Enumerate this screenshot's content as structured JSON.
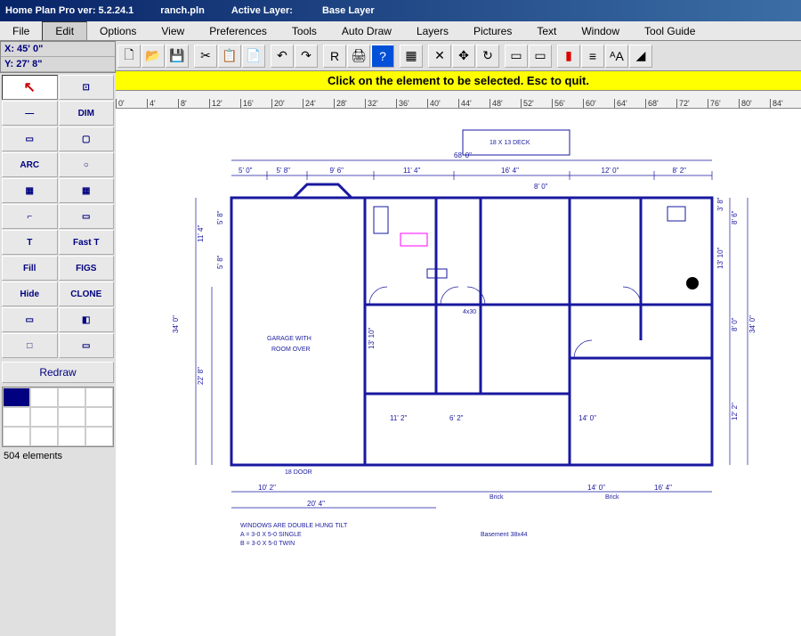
{
  "titlebar": {
    "app": "Home Plan Pro ver: 5.2.24.1",
    "file": "ranch.pln",
    "layer_label": "Active Layer:",
    "layer": "Base Layer"
  },
  "menu": [
    "File",
    "Edit",
    "Options",
    "View",
    "Preferences",
    "Tools",
    "Auto Draw",
    "Layers",
    "Pictures",
    "Text",
    "Window",
    "Tool Guide"
  ],
  "coords": {
    "x": "X: 45' 0\"",
    "y": "Y: 27' 8\""
  },
  "tools": [
    {
      "icon": "↖",
      "name": "select-arrow",
      "sel": true
    },
    {
      "icon": "⊡",
      "name": "select-rect"
    },
    {
      "icon": "—",
      "name": "line"
    },
    {
      "icon": "DIM",
      "name": "dimension"
    },
    {
      "icon": "▭",
      "name": "rect"
    },
    {
      "icon": "▢",
      "name": "rounded-rect"
    },
    {
      "icon": "ARC",
      "name": "arc"
    },
    {
      "icon": "○",
      "name": "circle"
    },
    {
      "icon": "▦",
      "name": "grid1"
    },
    {
      "icon": "▦",
      "name": "grid2"
    },
    {
      "icon": "⌐",
      "name": "polyline"
    },
    {
      "icon": "▭",
      "name": "shape"
    },
    {
      "icon": "T",
      "name": "text"
    },
    {
      "icon": "Fast T",
      "name": "fast-text"
    },
    {
      "icon": "Fill",
      "name": "fill"
    },
    {
      "icon": "FIGS",
      "name": "figures"
    },
    {
      "icon": "Hide",
      "name": "hide"
    },
    {
      "icon": "CLONE",
      "name": "clone"
    },
    {
      "icon": "▭",
      "name": "entity1"
    },
    {
      "icon": "◧",
      "name": "entity2"
    },
    {
      "icon": "□",
      "name": "entity3"
    },
    {
      "icon": "▭",
      "name": "entity4"
    }
  ],
  "redraw": "Redraw",
  "colors": [
    "#000080",
    "#fff",
    "#fff",
    "#fff",
    "#fff",
    "#fff",
    "#fff",
    "#fff",
    "#fff",
    "#fff",
    "#fff",
    "#fff"
  ],
  "status": "504 elements",
  "toolbar_icons": [
    {
      "g": "🗋",
      "n": "new"
    },
    {
      "g": "📂",
      "n": "open"
    },
    {
      "g": "💾",
      "n": "save"
    },
    {
      "sep": 1
    },
    {
      "g": "✂",
      "n": "cut"
    },
    {
      "g": "📋",
      "n": "copy"
    },
    {
      "g": "📄",
      "n": "paste"
    },
    {
      "sep": 1
    },
    {
      "g": "↶",
      "n": "undo"
    },
    {
      "g": "↷",
      "n": "redo"
    },
    {
      "sep": 1
    },
    {
      "g": "R",
      "n": "redraw-tb"
    },
    {
      "g": "🖨",
      "n": "print"
    },
    {
      "g": "?",
      "n": "help",
      "bg": "#0050d8",
      "fg": "#fff"
    },
    {
      "sep": 1
    },
    {
      "g": "▦",
      "n": "grid-tb"
    },
    {
      "sep": 1
    },
    {
      "g": "✕",
      "n": "delete"
    },
    {
      "g": "✥",
      "n": "move"
    },
    {
      "g": "↻",
      "n": "rotate"
    },
    {
      "sep": 1
    },
    {
      "g": "▭",
      "n": "shape-tb"
    },
    {
      "g": "▭",
      "n": "shape2-tb"
    },
    {
      "sep": 1
    },
    {
      "g": "▮",
      "n": "colors-tb",
      "fg": "#d00"
    },
    {
      "g": "≡",
      "n": "lines-tb"
    },
    {
      "g": "ᴬA",
      "n": "fonts-tb"
    },
    {
      "g": "◢",
      "n": "hatch-tb"
    }
  ],
  "hint": "Click on the element to be selected.  Esc to quit.",
  "ruler_ticks": [
    "0'",
    "4'",
    "8'",
    "12'",
    "16'",
    "20'",
    "24'",
    "28'",
    "32'",
    "36'",
    "40'",
    "44'",
    "48'",
    "52'",
    "56'",
    "60'",
    "64'",
    "68'",
    "72'",
    "76'",
    "80'",
    "84'"
  ],
  "floorplan": {
    "overall_width": "68' 0\"",
    "deck_label": "18 X 13 DECK",
    "top_dims": [
      "5' 0\"",
      "5' 8\"",
      "9' 6\"",
      "11' 4\"",
      "16' 4\"",
      "12' 0\"",
      "8' 2\""
    ],
    "top_sub_dim": "8' 0\"",
    "left_dims": [
      "34' 0\"",
      "22' 8\"",
      "11' 4\""
    ],
    "left_sub_dims": [
      "5' 8\"",
      "5' 8\""
    ],
    "right_dims": [
      "34' 0\"",
      "8' 6\"",
      "13' 10\"",
      "8' 0\"",
      "12' 2\""
    ],
    "right_sub": "3' 8\"",
    "interior_dims": [
      "13' 10\"",
      "11' 2\"",
      "6' 2\"",
      "14' 0\""
    ],
    "bottom_dims": [
      "10' 2\"",
      "20' 4\"",
      "14' 0\"",
      "16' 4\""
    ],
    "bottom_labels": [
      "18 DOOR",
      "Brick",
      "Brick"
    ],
    "rooms": {
      "garage": "GARAGE WITH\nROOM OVER",
      "bath_note": "4x30"
    },
    "footer_notes": [
      "WINDOWS ARE DOUBLE HUNG TILT",
      "A = 3-0 X 5-0 SINGLE",
      "B = 3-0 X 5-0 TWIN"
    ],
    "center_note": "Basement 38x44",
    "colors": {
      "line": "#1818a0",
      "bg": "#ffffff",
      "accent": "#ff00ff"
    }
  }
}
